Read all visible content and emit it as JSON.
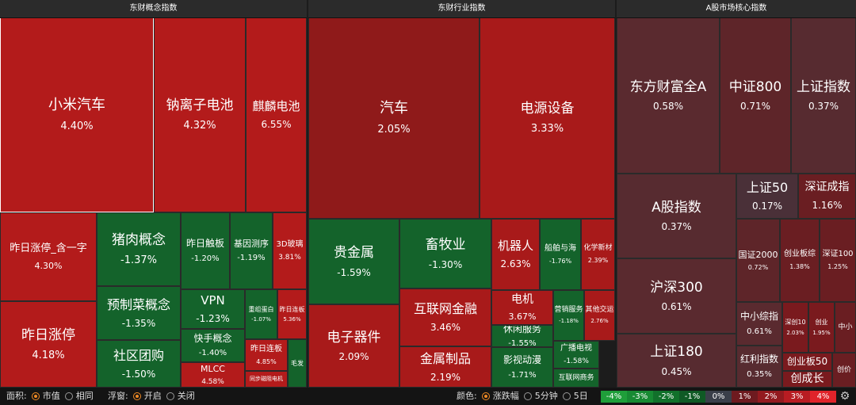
{
  "headers": {
    "concept": "东财概念指数",
    "industry": "东财行业指数",
    "core": "A股市场核心指数"
  },
  "tiles": {
    "c1": {
      "name": "小米汽车",
      "pct": "4.40%",
      "color": "#b31b1b"
    },
    "c2": {
      "name": "钠离子电池",
      "pct": "4.32%",
      "color": "#b31b1b"
    },
    "c3": {
      "name": "麒麟电池",
      "pct": "6.55%",
      "color": "#b31b1b"
    },
    "c4": {
      "name": "昨日涨停_含一字",
      "pct": "4.30%",
      "color": "#b31b1b"
    },
    "c5": {
      "name": "昨日涨停",
      "pct": "4.18%",
      "color": "#b31b1b"
    },
    "c6": {
      "name": "猪肉概念",
      "pct": "-1.37%",
      "color": "#14632b"
    },
    "c7": {
      "name": "预制菜概念",
      "pct": "-1.35%",
      "color": "#14632b"
    },
    "c8": {
      "name": "社区团购",
      "pct": "-1.50%",
      "color": "#14632b"
    },
    "c9": {
      "name": "昨日触板",
      "pct": "-1.20%",
      "color": "#14632b"
    },
    "c10": {
      "name": "基因测序",
      "pct": "-1.19%",
      "color": "#14632b"
    },
    "c11": {
      "name": "3D玻璃",
      "pct": "3.81%",
      "color": "#b31b1b"
    },
    "c12": {
      "name": "VPN",
      "pct": "-1.23%",
      "color": "#14632b"
    },
    "c13": {
      "name": "快手概念",
      "pct": "-1.40%",
      "color": "#14632b"
    },
    "c14": {
      "name": "MLCC",
      "pct": "4.58%",
      "color": "#b31b1b"
    },
    "c15": {
      "name": "重组蛋白",
      "pct": "-1.07%",
      "color": "#14632b"
    },
    "c16": {
      "name": "昨日连板",
      "pct": "5.36%",
      "color": "#b31b1b"
    },
    "c17": {
      "name": "昨日连板",
      "pct": "4.85%",
      "color": "#b31b1b"
    },
    "c18": {
      "name": "同步磁阻电机",
      "pct": "",
      "color": "#b31b1b"
    },
    "c19": {
      "name": "毛发",
      "pct": "",
      "color": "#14632b"
    },
    "i1": {
      "name": "汽车",
      "pct": "2.05%",
      "color": "#8f1a1a"
    },
    "i2": {
      "name": "电源设备",
      "pct": "3.33%",
      "color": "#a81a1a"
    },
    "i3": {
      "name": "贵金属",
      "pct": "-1.59%",
      "color": "#14632b"
    },
    "i4": {
      "name": "畜牧业",
      "pct": "-1.30%",
      "color": "#14632b"
    },
    "i5": {
      "name": "机器人",
      "pct": "2.63%",
      "color": "#a81a1a"
    },
    "i6": {
      "name": "船舶与海",
      "pct": "-1.76%",
      "color": "#14632b"
    },
    "i7": {
      "name": "化学新材",
      "pct": "2.39%",
      "color": "#a81a1a"
    },
    "i8": {
      "name": "电子器件",
      "pct": "2.09%",
      "color": "#a81a1a"
    },
    "i9": {
      "name": "互联网金融",
      "pct": "3.46%",
      "color": "#a81a1a"
    },
    "i10": {
      "name": "电机",
      "pct": "3.67%",
      "color": "#a81a1a"
    },
    "i11": {
      "name": "营销服务",
      "pct": "-1.18%",
      "color": "#14632b"
    },
    "i12": {
      "name": "其他交运",
      "pct": "2.76%",
      "color": "#a81a1a"
    },
    "i13": {
      "name": "休闲服务",
      "pct": "-1.55%",
      "color": "#14632b"
    },
    "i14": {
      "name": "广播电视",
      "pct": "-1.58%",
      "color": "#14632b"
    },
    "i15": {
      "name": "金属制品",
      "pct": "2.19%",
      "color": "#a81a1a"
    },
    "i16": {
      "name": "影视动漫",
      "pct": "-1.71%",
      "color": "#14632b"
    },
    "i17": {
      "name": "互联网商务",
      "pct": "",
      "color": "#14632b"
    },
    "k1": {
      "name": "东方财富全A",
      "pct": "0.58%",
      "color": "#5a2a2f"
    },
    "k2": {
      "name": "中证800",
      "pct": "0.71%",
      "color": "#5e2529"
    },
    "k3": {
      "name": "上证指数",
      "pct": "0.37%",
      "color": "#572b30"
    },
    "k4": {
      "name": "A股指数",
      "pct": "0.37%",
      "color": "#572b30"
    },
    "k5": {
      "name": "上证50",
      "pct": "0.17%",
      "color": "#4a3038"
    },
    "k6": {
      "name": "深证成指",
      "pct": "1.16%",
      "color": "#6a1e22"
    },
    "k7": {
      "name": "国证2000",
      "pct": "0.72%",
      "color": "#5e2529"
    },
    "k8": {
      "name": "创业板综",
      "pct": "1.38%",
      "color": "#6a1e22"
    },
    "k9": {
      "name": "深证100",
      "pct": "1.25%",
      "color": "#6a1e22"
    },
    "k10": {
      "name": "沪深300",
      "pct": "0.61%",
      "color": "#5a2a2f"
    },
    "k11": {
      "name": "中小综指",
      "pct": "0.61%",
      "color": "#5a2a2f"
    },
    "k12": {
      "name": "深创10",
      "pct": "2.03%",
      "color": "#7a1a1e"
    },
    "k13": {
      "name": "创业",
      "pct": "1.95%",
      "color": "#7a1a1e"
    },
    "k14": {
      "name": "中小",
      "pct": "",
      "color": "#6a1e22"
    },
    "k15": {
      "name": "上证180",
      "pct": "0.45%",
      "color": "#572b30"
    },
    "k16": {
      "name": "红利指数",
      "pct": "0.35%",
      "color": "#572b30"
    },
    "k17": {
      "name": "创业板50",
      "pct": "",
      "color": "#7a1a1e"
    },
    "k18": {
      "name": "创成长",
      "pct": "",
      "color": "#7a1a1e"
    },
    "k19": {
      "name": "创价",
      "pct": "",
      "color": "#6a1e22"
    }
  },
  "toolbar": {
    "area_label": "面积:",
    "area_opt1": "市值",
    "area_opt2": "相同",
    "float_label": "浮窗:",
    "float_opt1": "开启",
    "float_opt2": "关闭",
    "color_label": "颜色:",
    "color_opt1": "涨跌幅",
    "color_opt2": "5分钟",
    "color_opt3": "5日",
    "legend": [
      {
        "label": "-4%",
        "color": "#1f9e3a"
      },
      {
        "label": "-3%",
        "color": "#178a33"
      },
      {
        "label": "-2%",
        "color": "#11712b"
      },
      {
        "label": "-1%",
        "color": "#0f5a25"
      },
      {
        "label": "0%",
        "color": "#3a3f4a"
      },
      {
        "label": "1%",
        "color": "#6e1a1f"
      },
      {
        "label": "2%",
        "color": "#931a1f"
      },
      {
        "label": "3%",
        "color": "#b81c22"
      },
      {
        "label": "4%",
        "color": "#e0232a"
      }
    ],
    "settings_icon": "gear-icon"
  }
}
